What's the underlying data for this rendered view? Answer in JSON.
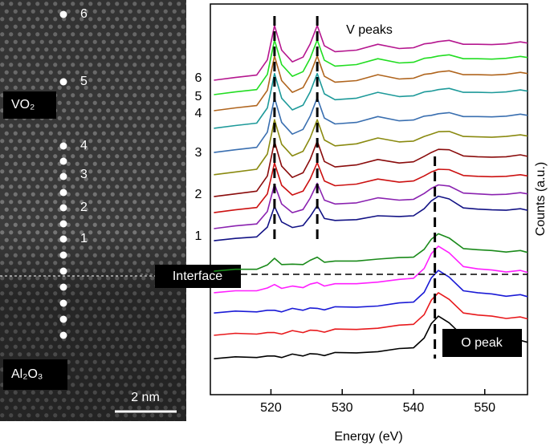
{
  "image": {
    "phase_top": "VO₂",
    "phase_bottom": "Al₂O₃",
    "point_labels": [
      "6",
      "5",
      "4",
      "3",
      "2",
      "1"
    ],
    "scale_bar": "2 nm"
  },
  "chart_data": {
    "type": "line",
    "xlabel": "Energy (eV)",
    "ylabel": "Counts (a.u.)",
    "annotations": [
      "V peaks",
      "O peak",
      "Interface"
    ],
    "curve_labels": [
      "6",
      "5",
      "4",
      "3",
      "2",
      "1"
    ],
    "x": [
      512,
      515,
      518,
      519.5,
      520.5,
      521.5,
      523,
      524.5,
      525.5,
      526.5,
      527.5,
      529,
      532,
      535,
      538,
      540,
      541.5,
      542.5,
      543.5,
      545,
      547,
      549,
      551,
      553,
      555,
      556
    ],
    "xlim": [
      511.5,
      556
    ],
    "xticks": [
      520,
      530,
      540,
      550
    ],
    "ylim": [
      0,
      100
    ],
    "vlines": [
      520.5,
      526.5,
      543
    ],
    "hline": 30.8,
    "series": [
      {
        "color": "#000000",
        "values": [
          9.2,
          9.7,
          9.5,
          9.9,
          9.9,
          9.5,
          10.4,
          9.9,
          10.5,
          10.4,
          10.0,
          10.8,
          10.7,
          11.0,
          11.8,
          12.0,
          14.5,
          18.2,
          20.1,
          18.4,
          14.9,
          14.4,
          14.1,
          13.5,
          13.9,
          13.4
        ]
      },
      {
        "color": "#e8191c",
        "values": [
          15.2,
          15.7,
          15.5,
          15.9,
          15.9,
          15.5,
          16.4,
          15.9,
          16.5,
          16.4,
          16.0,
          16.8,
          16.7,
          17.0,
          17.8,
          18.0,
          20.5,
          24.2,
          26.1,
          24.4,
          20.9,
          20.4,
          20.1,
          19.5,
          19.9,
          19.4
        ]
      },
      {
        "color": "#1b1bd6",
        "values": [
          20.9,
          21.4,
          21.2,
          21.6,
          21.6,
          21.2,
          22.1,
          21.6,
          22.2,
          22.1,
          21.7,
          22.5,
          22.4,
          22.7,
          23.5,
          23.7,
          26.2,
          29.9,
          31.8,
          30.1,
          26.6,
          26.1,
          25.8,
          25.2,
          25.6,
          25.1
        ]
      },
      {
        "color": "#ff1fff",
        "values": [
          26.1,
          26.6,
          26.6,
          27.3,
          28.2,
          27.2,
          27.8,
          27.4,
          28.3,
          28.7,
          27.8,
          28.4,
          28.4,
          28.8,
          29.5,
          29.8,
          32.3,
          36.1,
          38.0,
          36.3,
          32.8,
          32.2,
          31.9,
          31.4,
          31.8,
          31.3
        ]
      },
      {
        "color": "#1a8a1a",
        "values": [
          31.6,
          32.1,
          32.1,
          33.2,
          34.9,
          33.3,
          33.4,
          33.3,
          34.4,
          35.2,
          33.9,
          34.2,
          34.2,
          34.7,
          35.1,
          35.2,
          37.2,
          39.8,
          41.2,
          40.1,
          37.4,
          37.1,
          36.9,
          36.5,
          36.9,
          36.4
        ]
      },
      {
        "color": "#121285",
        "values": [
          39.4,
          40.0,
          40.4,
          42.9,
          48.2,
          44.2,
          42.8,
          43.3,
          45.6,
          48.4,
          45.1,
          44.6,
          44.8,
          45.8,
          45.6,
          45.8,
          47.6,
          49.6,
          50.8,
          50.1,
          47.8,
          47.5,
          47.3,
          47.2,
          47.6,
          47.2
        ]
      },
      {
        "color": "#8a22b0",
        "values": [
          42.5,
          43.2,
          43.7,
          46.9,
          53.9,
          48.8,
          46.6,
          47.4,
          50.3,
          54.1,
          49.8,
          48.8,
          49.1,
          50.4,
          49.8,
          50.0,
          51.5,
          52.8,
          53.7,
          53.4,
          51.6,
          51.4,
          51.2,
          51.3,
          51.7,
          51.4
        ]
      },
      {
        "color": "#cc1111",
        "values": [
          46.6,
          47.3,
          47.9,
          51.4,
          59.3,
          53.6,
          51.1,
          52.1,
          55.2,
          59.4,
          54.7,
          53.5,
          53.9,
          55.2,
          54.4,
          54.7,
          56.0,
          57.0,
          57.7,
          57.6,
          56.1,
          55.9,
          55.8,
          55.9,
          56.3,
          56.0
        ]
      },
      {
        "color": "#8a0c0c",
        "values": [
          50.7,
          51.4,
          52.1,
          56.0,
          64.8,
          58.5,
          55.6,
          56.8,
          60.2,
          64.9,
          59.7,
          58.3,
          58.8,
          60.2,
          59.3,
          59.6,
          61.0,
          62.0,
          62.8,
          62.7,
          61.1,
          60.9,
          60.8,
          60.9,
          61.4,
          61.0
        ]
      },
      {
        "color": "#8a8a10",
        "values": [
          56.3,
          57.0,
          57.7,
          61.6,
          70.4,
          64.1,
          61.1,
          62.3,
          65.7,
          70.4,
          65.2,
          63.7,
          64.2,
          65.7,
          64.7,
          64.9,
          66.1,
          66.7,
          67.3,
          67.4,
          66.1,
          66.0,
          65.9,
          66.1,
          66.5,
          66.2
        ]
      },
      {
        "color": "#3a6fb0",
        "values": [
          62,
          62.7,
          63.3,
          67.2,
          76,
          69.7,
          66.7,
          67.9,
          71.3,
          76,
          70.8,
          69.3,
          69.7,
          71.2,
          70.1,
          70.3,
          71.3,
          71.5,
          71.9,
          72.2,
          71.2,
          71.2,
          71.1,
          71.3,
          71.8,
          71.5
        ]
      },
      {
        "color": "#1e9a9a",
        "values": [
          68.2,
          68.9,
          69.5,
          73.4,
          82.2,
          75.9,
          72.9,
          74.1,
          77.5,
          82.2,
          77,
          75.5,
          75.9,
          77.4,
          76.3,
          76.5,
          77.5,
          77.7,
          78.1,
          78.4,
          77.4,
          77.4,
          77.3,
          77.5,
          78,
          77.7
        ]
      },
      {
        "color": "#b0651e",
        "values": [
          72.7,
          73.4,
          74,
          77.9,
          86.7,
          80.4,
          77.4,
          78.6,
          82,
          86.7,
          81.5,
          80,
          80.4,
          81.9,
          80.8,
          81,
          82,
          82.2,
          82.6,
          82.9,
          81.9,
          81.9,
          81.8,
          82,
          82.5,
          82.2
        ]
      },
      {
        "color": "#22dd22",
        "values": [
          76.8,
          77.5,
          78.1,
          82,
          90.8,
          84.5,
          81.5,
          82.7,
          86.1,
          90.8,
          85.6,
          84.1,
          84.5,
          86,
          84.9,
          85.1,
          86.1,
          86.3,
          86.7,
          87,
          86,
          86,
          85.9,
          86.1,
          86.6,
          86.3
        ]
      },
      {
        "color": "#b5178f",
        "values": [
          80.5,
          81.2,
          81.8,
          85.7,
          94.5,
          88.2,
          85.2,
          86.4,
          89.8,
          94.5,
          89.3,
          87.8,
          88.2,
          89.7,
          88.6,
          88.8,
          89.8,
          90,
          90.4,
          90.7,
          89.7,
          89.7,
          89.6,
          89.8,
          90.3,
          90
        ]
      }
    ]
  }
}
